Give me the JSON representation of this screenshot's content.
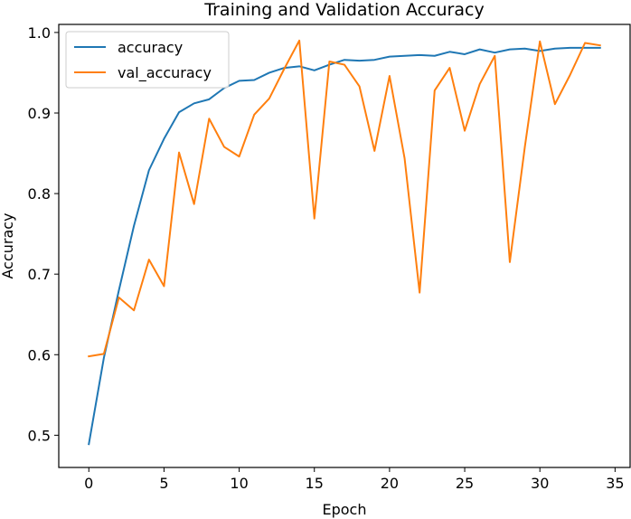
{
  "chart_data": {
    "type": "line",
    "title": "Training and Validation Accuracy",
    "xlabel": "Epoch",
    "ylabel": "Accuracy",
    "xlim": [
      -2,
      36
    ],
    "ylim": [
      0.46,
      1.01
    ],
    "xticks": [
      0,
      5,
      10,
      15,
      20,
      25,
      30,
      35
    ],
    "yticks": [
      0.5,
      0.6,
      0.7,
      0.8,
      0.9,
      1.0
    ],
    "xtick_labels": [
      "0",
      "5",
      "10",
      "15",
      "20",
      "25",
      "30",
      "35"
    ],
    "ytick_labels": [
      "0.5",
      "0.6",
      "0.7",
      "0.8",
      "0.9",
      "1.0"
    ],
    "grid": false,
    "legend_position": "upper-left",
    "x": [
      0,
      1,
      2,
      3,
      4,
      5,
      6,
      7,
      8,
      9,
      10,
      11,
      12,
      13,
      14,
      15,
      16,
      17,
      18,
      19,
      20,
      21,
      22,
      23,
      24,
      25,
      26,
      27,
      28,
      29,
      30,
      31,
      32,
      33,
      34
    ],
    "series": [
      {
        "name": "accuracy",
        "color": "#1f77b4",
        "values": [
          0.489,
          0.596,
          0.68,
          0.76,
          0.829,
          0.868,
          0.901,
          0.912,
          0.917,
          0.931,
          0.94,
          0.941,
          0.95,
          0.956,
          0.958,
          0.953,
          0.96,
          0.966,
          0.965,
          0.966,
          0.97,
          0.971,
          0.972,
          0.971,
          0.976,
          0.973,
          0.979,
          0.975,
          0.979,
          0.98,
          0.977,
          0.98,
          0.981,
          0.981,
          0.981
        ]
      },
      {
        "name": "val_accuracy",
        "color": "#ff7f0e",
        "values": [
          0.598,
          0.601,
          0.671,
          0.655,
          0.718,
          0.685,
          0.851,
          0.787,
          0.893,
          0.858,
          0.846,
          0.898,
          0.918,
          0.955,
          0.99,
          0.769,
          0.964,
          0.96,
          0.933,
          0.853,
          0.946,
          0.844,
          0.677,
          0.928,
          0.956,
          0.878,
          0.936,
          0.971,
          0.715,
          0.858,
          0.989,
          0.911,
          0.947,
          0.987,
          0.984
        ]
      }
    ]
  }
}
